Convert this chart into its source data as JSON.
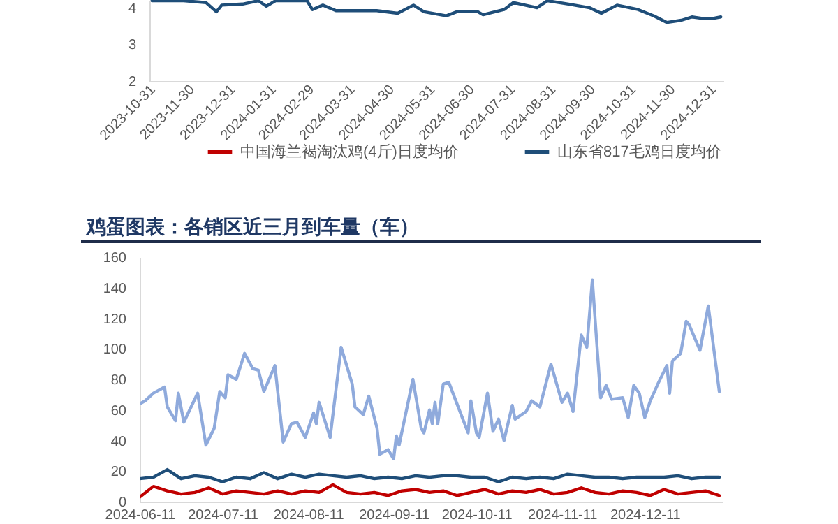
{
  "chart_data": [
    {
      "type": "line",
      "x": [
        "2023-10-31",
        "2023-11-24",
        "2023-12-11",
        "2023-12-19",
        "2023-12-23",
        "2024-01-08",
        "2024-01-20",
        "2024-01-26",
        "2024-02-02",
        "2024-02-26",
        "2024-03-01",
        "2024-03-09",
        "2024-03-19",
        "2024-04-03",
        "2024-04-19",
        "2024-05-05",
        "2024-05-17",
        "2024-05-25",
        "2024-06-11",
        "2024-06-19",
        "2024-07-05",
        "2024-07-09",
        "2024-07-25",
        "2024-08-01",
        "2024-08-19",
        "2024-08-27",
        "2024-09-12",
        "2024-09-28",
        "2024-10-07",
        "2024-10-19",
        "2024-11-04",
        "2024-11-16",
        "2024-11-26",
        "2024-12-07",
        "2024-12-15",
        "2024-12-23",
        "2024-12-31",
        "2025-01-06"
      ],
      "series": [
        {
          "name": "中国海兰褐淘汰鸡(4斤)日度均价",
          "color": "#c00000",
          "values": [
            null,
            null,
            null,
            null,
            null,
            null,
            null,
            null,
            null,
            null,
            null,
            null,
            null,
            null,
            null,
            null,
            null,
            null,
            null,
            null,
            null,
            null,
            null,
            null,
            null,
            null,
            null,
            null,
            null,
            null,
            null,
            null,
            null,
            null,
            null,
            null,
            null,
            null
          ]
        },
        {
          "name": "山东省817毛鸡日度均价",
          "color": "#1f4e79",
          "values": [
            4.18,
            4.18,
            4.13,
            3.88,
            4.06,
            4.09,
            4.18,
            4.03,
            4.18,
            4.18,
            3.94,
            4.06,
            3.91,
            3.91,
            3.91,
            3.84,
            4.06,
            3.88,
            3.77,
            3.88,
            3.88,
            3.8,
            3.94,
            4.13,
            3.99,
            4.18,
            4.09,
            3.99,
            3.84,
            4.06,
            3.94,
            3.77,
            3.59,
            3.65,
            3.74,
            3.7,
            3.7,
            3.74
          ]
        }
      ],
      "xlim": [
        "2023-10-29",
        "2025-01-08"
      ],
      "xticks": [
        "2023-10-31",
        "2023-11-30",
        "2023-12-31",
        "2024-01-31",
        "2024-02-29",
        "2024-03-31",
        "2024-04-30",
        "2024-05-31",
        "2024-06-30",
        "2024-07-31",
        "2024-08-31",
        "2024-09-30",
        "2024-10-31",
        "2024-11-30",
        "2024-12-31"
      ],
      "ylim": [
        2,
        4.2
      ],
      "yticks": [
        2,
        3,
        4
      ],
      "legend": "bottom"
    },
    {
      "type": "line",
      "title": "鸡蛋图表：各销区近三月到车量（车）",
      "series": [
        {
          "color": "#8faadc",
          "x": [
            "2024-06-11",
            "2024-06-13",
            "2024-06-16",
            "2024-06-18",
            "2024-06-20",
            "2024-06-21",
            "2024-06-24",
            "2024-06-25",
            "2024-06-27",
            "2024-07-02",
            "2024-07-05",
            "2024-07-08",
            "2024-07-10",
            "2024-07-12",
            "2024-07-13",
            "2024-07-16",
            "2024-07-19",
            "2024-07-22",
            "2024-07-24",
            "2024-07-26",
            "2024-07-30",
            "2024-08-02",
            "2024-08-05",
            "2024-08-07",
            "2024-08-10",
            "2024-08-13",
            "2024-08-14",
            "2024-08-15",
            "2024-08-19",
            "2024-08-23",
            "2024-08-27",
            "2024-08-28",
            "2024-08-31",
            "2024-09-02",
            "2024-09-05",
            "2024-09-06",
            "2024-09-09",
            "2024-09-11",
            "2024-09-12",
            "2024-09-13",
            "2024-09-18",
            "2024-09-21",
            "2024-09-22",
            "2024-09-24",
            "2024-09-25",
            "2024-09-26",
            "2024-09-27",
            "2024-09-29",
            "2024-10-01",
            "2024-10-08",
            "2024-10-09",
            "2024-10-11",
            "2024-10-12",
            "2024-10-15",
            "2024-10-17",
            "2024-10-19",
            "2024-10-21",
            "2024-10-24",
            "2024-10-25",
            "2024-10-29",
            "2024-10-31",
            "2024-11-03",
            "2024-11-07",
            "2024-11-11",
            "2024-11-13",
            "2024-11-15",
            "2024-11-18",
            "2024-11-20",
            "2024-11-22",
            "2024-11-25",
            "2024-11-27",
            "2024-11-29",
            "2024-12-03",
            "2024-12-05",
            "2024-12-07",
            "2024-12-09",
            "2024-12-11",
            "2024-12-13",
            "2024-12-16",
            "2024-12-19",
            "2024-12-20",
            "2024-12-21",
            "2024-12-24",
            "2024-12-26",
            "2024-12-27",
            "2024-12-31",
            "2025-01-03",
            "2025-01-07"
          ],
          "values": [
            64,
            66,
            71,
            73,
            75,
            62,
            53,
            71,
            52,
            71,
            37,
            48,
            72,
            68,
            83,
            80,
            97,
            87,
            86,
            72,
            89,
            39,
            51,
            52,
            42,
            58,
            51,
            65,
            42,
            101,
            77,
            62,
            57,
            69,
            48,
            31,
            34,
            28,
            43,
            37,
            80,
            48,
            45,
            60,
            51,
            65,
            51,
            77,
            78,
            45,
            66,
            45,
            42,
            71,
            46,
            54,
            40,
            63,
            54,
            59,
            66,
            62,
            90,
            65,
            71,
            59,
            109,
            101,
            145,
            68,
            76,
            67,
            68,
            55,
            76,
            71,
            55,
            66,
            78,
            89,
            71,
            92,
            97,
            118,
            116,
            99,
            128,
            72
          ]
        },
        {
          "color": "#1f4e79",
          "x": [
            "2024-06-11",
            "2024-06-16",
            "2024-06-21",
            "2024-06-26",
            "2024-07-01",
            "2024-07-06",
            "2024-07-11",
            "2024-07-16",
            "2024-07-21",
            "2024-07-26",
            "2024-07-31",
            "2024-08-05",
            "2024-08-10",
            "2024-08-15",
            "2024-08-20",
            "2024-08-25",
            "2024-08-30",
            "2024-09-04",
            "2024-09-09",
            "2024-09-14",
            "2024-09-19",
            "2024-09-24",
            "2024-09-29",
            "2024-10-04",
            "2024-10-09",
            "2024-10-14",
            "2024-10-19",
            "2024-10-24",
            "2024-10-29",
            "2024-11-03",
            "2024-11-08",
            "2024-11-13",
            "2024-11-18",
            "2024-11-23",
            "2024-11-28",
            "2024-12-03",
            "2024-12-08",
            "2024-12-13",
            "2024-12-18",
            "2024-12-23",
            "2024-12-28",
            "2025-01-02",
            "2025-01-07"
          ],
          "values": [
            15,
            16,
            21,
            15,
            17,
            16,
            13,
            16,
            15,
            19,
            15,
            18,
            16,
            18,
            17,
            16,
            17,
            15,
            16,
            15,
            17,
            16,
            17,
            17,
            16,
            16,
            13,
            16,
            15,
            16,
            15,
            18,
            17,
            16,
            16,
            15,
            16,
            16,
            16,
            17,
            15,
            16,
            16
          ]
        },
        {
          "color": "#c00000",
          "x": [
            "2024-06-11",
            "2024-06-16",
            "2024-06-21",
            "2024-06-26",
            "2024-07-01",
            "2024-07-06",
            "2024-07-11",
            "2024-07-16",
            "2024-07-21",
            "2024-07-26",
            "2024-07-31",
            "2024-08-05",
            "2024-08-10",
            "2024-08-15",
            "2024-08-20",
            "2024-08-25",
            "2024-08-30",
            "2024-09-04",
            "2024-09-09",
            "2024-09-14",
            "2024-09-19",
            "2024-09-24",
            "2024-09-29",
            "2024-10-04",
            "2024-10-09",
            "2024-10-14",
            "2024-10-19",
            "2024-10-24",
            "2024-10-29",
            "2024-11-03",
            "2024-11-08",
            "2024-11-13",
            "2024-11-18",
            "2024-11-23",
            "2024-11-28",
            "2024-12-03",
            "2024-12-08",
            "2024-12-13",
            "2024-12-18",
            "2024-12-23",
            "2024-12-28",
            "2025-01-02",
            "2025-01-07"
          ],
          "values": [
            3,
            10,
            7,
            5,
            6,
            9,
            5,
            7,
            6,
            5,
            7,
            5,
            7,
            6,
            11,
            6,
            5,
            6,
            4,
            7,
            8,
            6,
            7,
            4,
            6,
            8,
            5,
            7,
            6,
            8,
            5,
            6,
            9,
            6,
            5,
            7,
            6,
            4,
            8,
            5,
            6,
            7,
            4
          ]
        }
      ],
      "xlim": [
        "2024-06-11",
        "2025-01-08"
      ],
      "xticks": [
        "2024-06-11",
        "2024-07-11",
        "2024-08-11",
        "2024-09-11",
        "2024-10-11",
        "2024-11-11",
        "2024-12-11"
      ],
      "ylim": [
        0,
        160
      ],
      "yticks": [
        0,
        20,
        40,
        60,
        80,
        100,
        120,
        140,
        160
      ]
    }
  ]
}
